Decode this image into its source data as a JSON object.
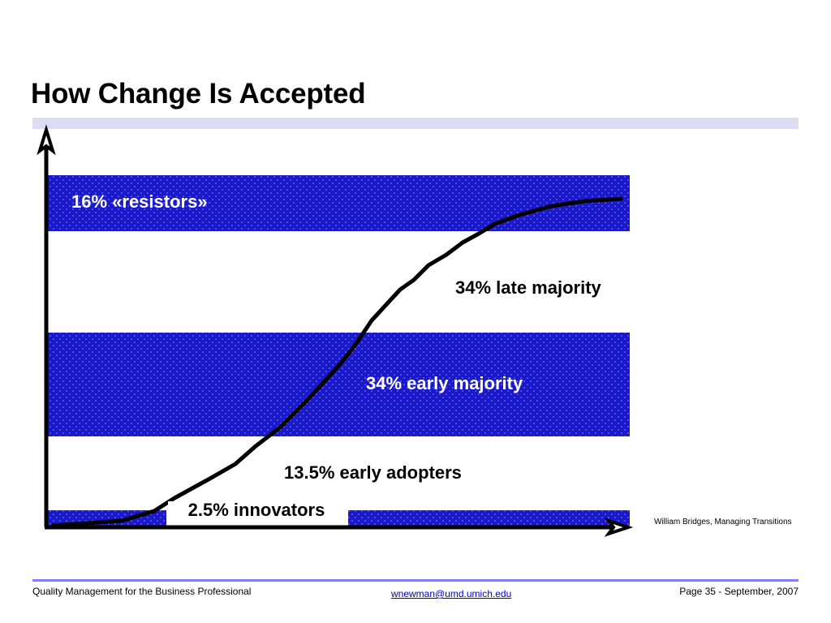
{
  "slide": {
    "title": "How Change Is Accepted"
  },
  "diagram": {
    "bands": [
      {
        "label": "16% «resistors»",
        "fill": "blue"
      },
      {
        "label": "34% late majority",
        "fill": "white"
      },
      {
        "label": "34% early majority",
        "fill": "blue"
      },
      {
        "label": "13.5% early adopters",
        "fill": "white"
      },
      {
        "label": "2.5% innovators",
        "fill": "blue"
      }
    ],
    "source": "William Bridges, Managing Transitions"
  },
  "footer": {
    "left": "Quality Management for the Business Professional",
    "email": "wnewman@umd.umich.edu",
    "right": "Page 35 - September, 2007"
  },
  "colors": {
    "band_blue": "#1a1acc",
    "title_rule": "#dcdcf5",
    "footer_rule": "#8080ee",
    "link": "#0000cc"
  }
}
